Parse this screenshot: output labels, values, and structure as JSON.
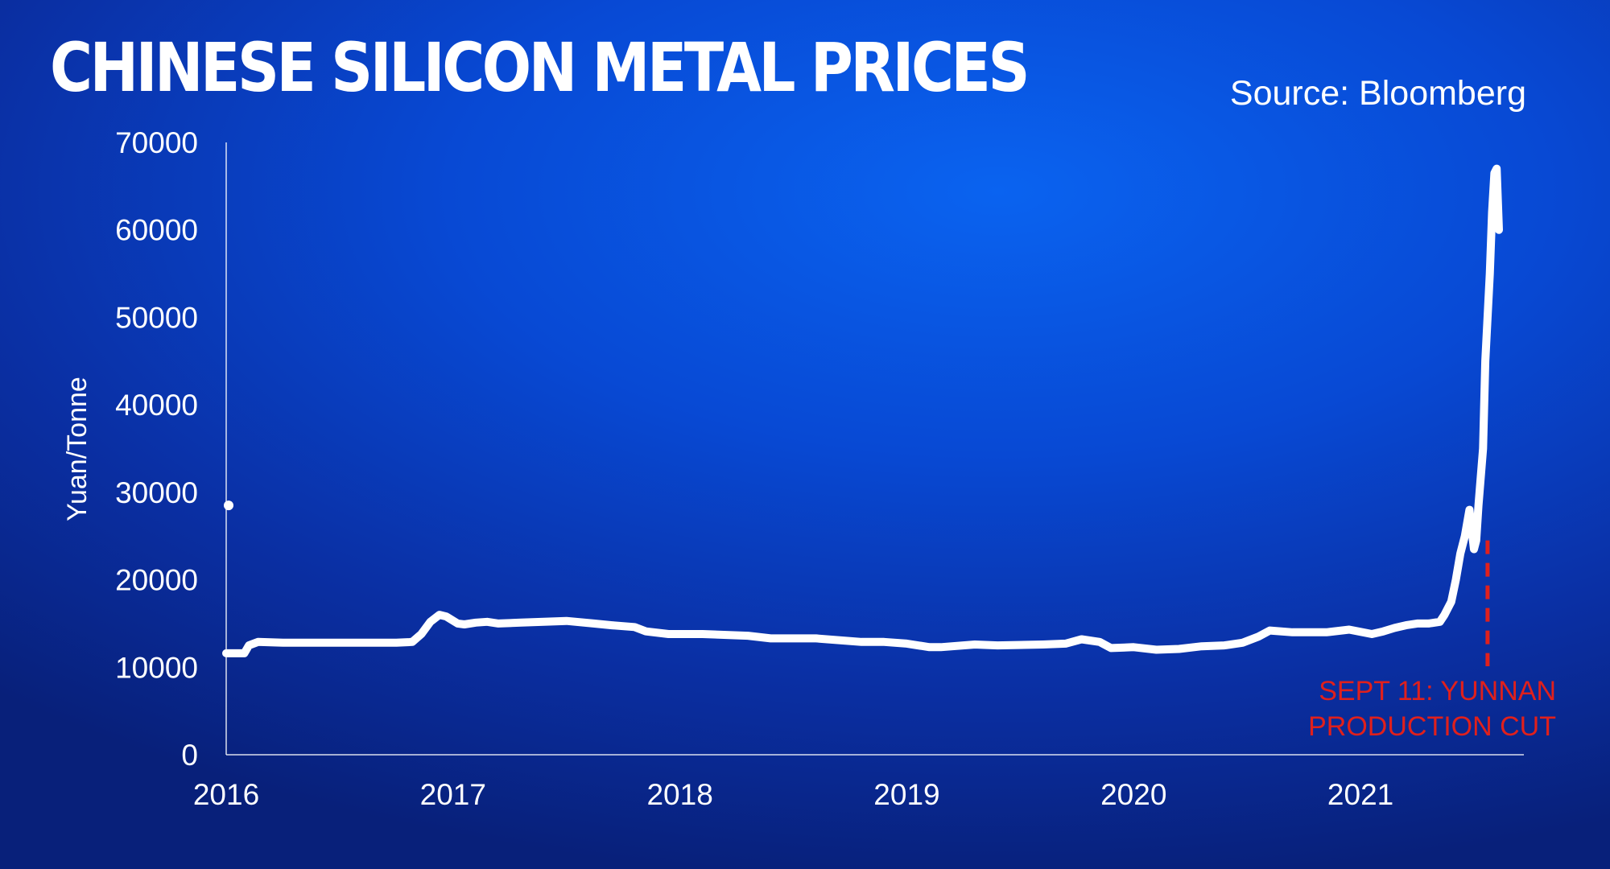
{
  "header": {
    "title": "CHINESE SILICON METAL PRICES",
    "source": "Source: Bloomberg"
  },
  "colors": {
    "line": "#ffffff",
    "annotation": "#e0201c",
    "axis": "#ffffff"
  },
  "chart_data": {
    "type": "line",
    "title": "CHINESE SILICON METAL PRICES",
    "ylabel": "Yuan/Tonne",
    "xlabel": "",
    "ylim": [
      0,
      70000
    ],
    "xlim": [
      2016.0,
      2021.72
    ],
    "yticks": [
      0,
      10000,
      20000,
      30000,
      40000,
      50000,
      60000,
      70000
    ],
    "xticks": [
      {
        "value": 2016.0,
        "label": "2016"
      },
      {
        "value": 2017.0,
        "label": "2017"
      },
      {
        "value": 2018.0,
        "label": "2018"
      },
      {
        "value": 2019.0,
        "label": "2019"
      },
      {
        "value": 2020.0,
        "label": "2020"
      },
      {
        "value": 2021.0,
        "label": "2021"
      }
    ],
    "grid": false,
    "series": [
      {
        "x": [
          2016.0,
          2016.08,
          2016.1,
          2016.14,
          2016.25,
          2016.5,
          2016.75,
          2016.82,
          2016.86,
          2016.9,
          2016.94,
          2016.97,
          2017.02,
          2017.05,
          2017.1,
          2017.15,
          2017.2,
          2017.3,
          2017.5,
          2017.62,
          2017.7,
          2017.8,
          2017.85,
          2017.95,
          2018.1,
          2018.3,
          2018.4,
          2018.6,
          2018.8,
          2018.9,
          2019.0,
          2019.1,
          2019.15,
          2019.3,
          2019.4,
          2019.6,
          2019.7,
          2019.77,
          2019.85,
          2019.9,
          2020.0,
          2020.1,
          2020.2,
          2020.3,
          2020.4,
          2020.48,
          2020.55,
          2020.6,
          2020.7,
          2020.85,
          2020.95,
          2021.05,
          2021.1,
          2021.15,
          2021.2,
          2021.25,
          2021.3,
          2021.35,
          2021.37,
          2021.4,
          2021.42,
          2021.44,
          2021.46,
          2021.48,
          2021.5,
          2021.51,
          2021.52,
          2021.54,
          2021.55,
          2021.56,
          2021.57,
          2021.58,
          2021.59,
          2021.6,
          2021.61
        ],
        "values": [
          11600,
          11600,
          12500,
          12900,
          12800,
          12800,
          12800,
          12900,
          13800,
          15200,
          16000,
          15800,
          15000,
          14900,
          15100,
          15200,
          15000,
          15100,
          15300,
          15000,
          14800,
          14600,
          14100,
          13800,
          13800,
          13600,
          13300,
          13300,
          12900,
          12900,
          12700,
          12300,
          12300,
          12600,
          12500,
          12600,
          12700,
          13200,
          12900,
          12200,
          12300,
          12000,
          12100,
          12400,
          12500,
          12800,
          13500,
          14200,
          14000,
          14000,
          14300,
          13800,
          14100,
          14500,
          14800,
          15000,
          15000,
          15200,
          16000,
          17500,
          20000,
          23000,
          25000,
          28000,
          23500,
          24500,
          28500,
          35000,
          45000,
          50000,
          55000,
          62000,
          66500,
          67000,
          60000
        ]
      }
    ],
    "outlier_point": {
      "x": 2016.0,
      "y": 28500
    },
    "annotation": {
      "x": 2021.56,
      "y_from": 0,
      "y_to": 24500,
      "lines": [
        "SEPT 11: YUNNAN",
        "PRODUCTION CUT"
      ]
    }
  }
}
